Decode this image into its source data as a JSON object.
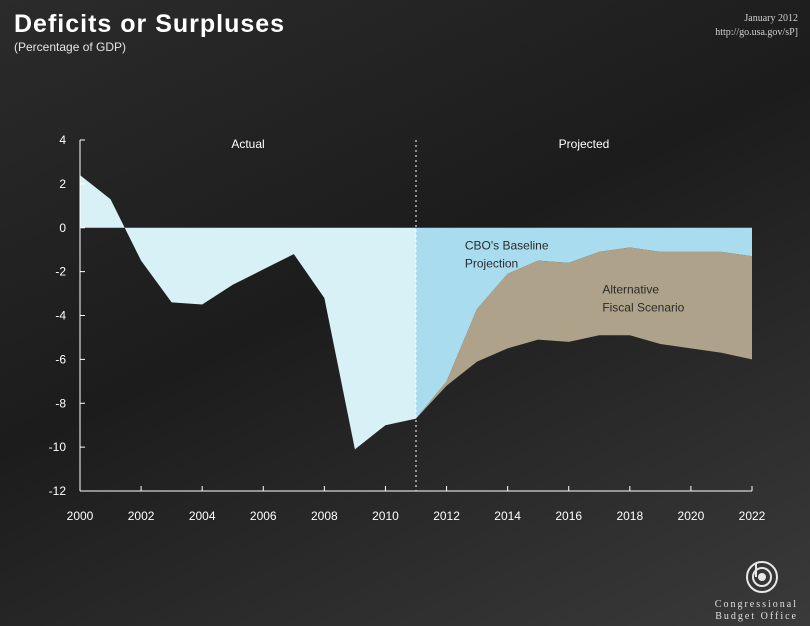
{
  "header": {
    "title": "Deficits or Surpluses",
    "subtitle": "(Percentage of GDP)",
    "date": "January 2012",
    "url": "http://go.usa.gov/sP]"
  },
  "logo": {
    "line1": "Congressional",
    "line2": "Budget Office"
  },
  "chart_data": {
    "type": "area",
    "title": "Deficits or Surpluses",
    "subtitle": "(Percentage of GDP)",
    "xlim": [
      2000,
      2022
    ],
    "ylim": [
      -12,
      4
    ],
    "x_ticks": [
      2000,
      2002,
      2004,
      2006,
      2008,
      2010,
      2012,
      2014,
      2016,
      2018,
      2020,
      2022
    ],
    "y_ticks": [
      4,
      2,
      0,
      -2,
      -4,
      -6,
      -8,
      -10,
      -12
    ],
    "grid": false,
    "divider_x": 2011,
    "regions": [
      {
        "label": "Actual",
        "x_center": 2005.5
      },
      {
        "label": "Projected",
        "x_center": 2016.5
      }
    ],
    "colors": {
      "actual": "#d8f1f7",
      "baseline": "#a9dcef",
      "alternative": "#aea38a"
    },
    "series": [
      {
        "name": "Actual",
        "x": [
          2000,
          2001,
          2002,
          2003,
          2004,
          2005,
          2006,
          2007,
          2008,
          2009,
          2010,
          2011
        ],
        "values": [
          2.4,
          1.3,
          -1.5,
          -3.4,
          -3.5,
          -2.6,
          -1.9,
          -1.2,
          -3.2,
          -10.1,
          -9.0,
          -8.7
        ]
      },
      {
        "name": "CBO's Baseline Projection",
        "x": [
          2011,
          2012,
          2013,
          2014,
          2015,
          2016,
          2017,
          2018,
          2019,
          2020,
          2021,
          2022
        ],
        "values": [
          -8.7,
          -7.0,
          -3.7,
          -2.1,
          -1.5,
          -1.6,
          -1.1,
          -0.9,
          -1.1,
          -1.1,
          -1.1,
          -1.3
        ]
      },
      {
        "name": "Alternative Fiscal Scenario",
        "x": [
          2011,
          2012,
          2013,
          2014,
          2015,
          2016,
          2017,
          2018,
          2019,
          2020,
          2021,
          2022
        ],
        "values": [
          -8.7,
          -7.2,
          -6.1,
          -5.5,
          -5.1,
          -5.2,
          -4.9,
          -4.9,
          -5.3,
          -5.5,
          -5.7,
          -6.0
        ]
      }
    ],
    "annotations": [
      {
        "text_lines": [
          "CBO's Baseline",
          "Projection"
        ],
        "x": 2012.6,
        "y": -1.0
      },
      {
        "text_lines": [
          "Alternative",
          "Fiscal Scenario"
        ],
        "x": 2017.1,
        "y": -3.0
      }
    ]
  }
}
